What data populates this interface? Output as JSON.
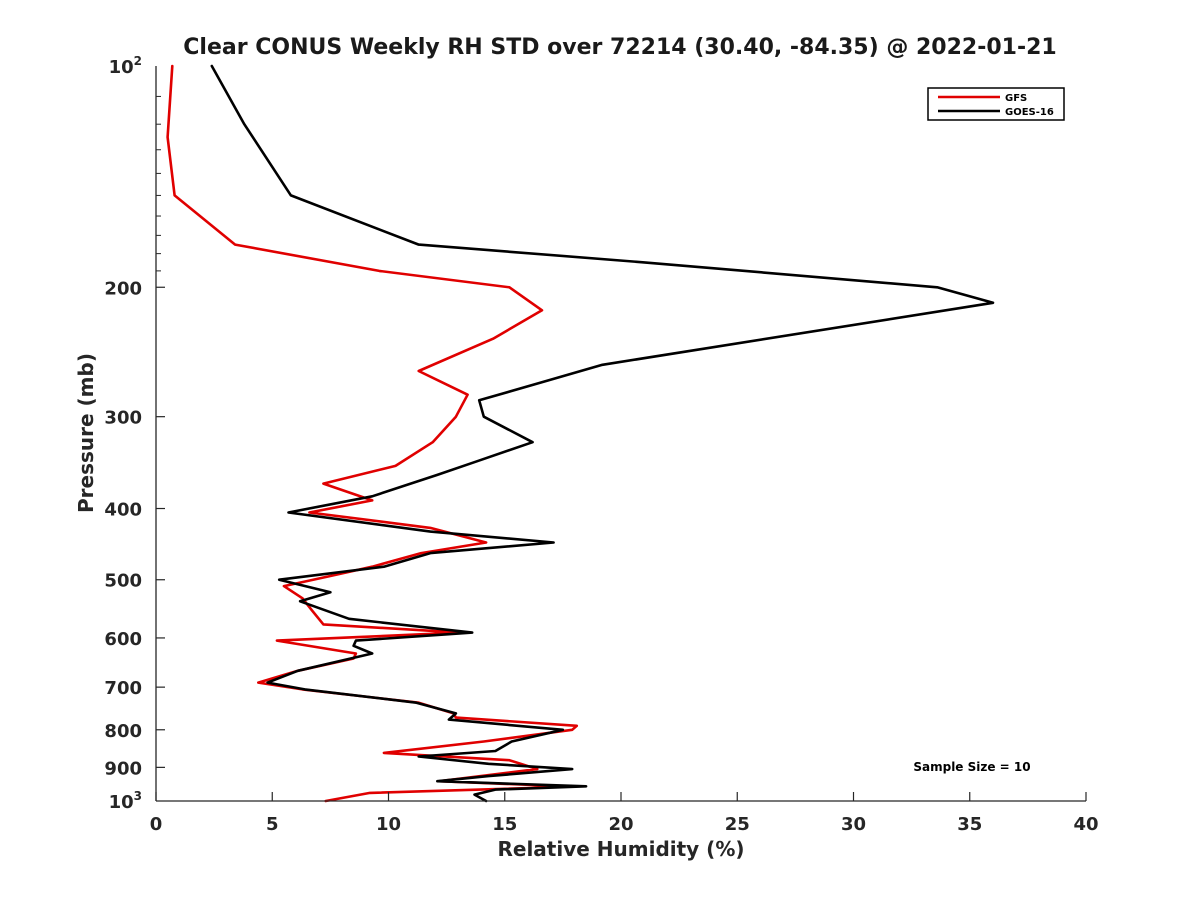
{
  "chart_data": {
    "type": "line",
    "title": "Clear CONUS Weekly RH STD over 72214 (30.40, -84.35) @ 2022-01-21",
    "xlabel": "Relative Humidity (%)",
    "ylabel": "Pressure (mb)",
    "xlim": [
      0,
      40
    ],
    "ylim": [
      100,
      1000
    ],
    "y_scale": "log",
    "y_reversed": true,
    "x_ticks": [
      0,
      5,
      10,
      15,
      20,
      25,
      30,
      35,
      40
    ],
    "x_tick_labels": [
      "0",
      "5",
      "10",
      "15",
      "20",
      "25",
      "30",
      "35",
      "40"
    ],
    "y_ticks": [
      200,
      300,
      400,
      500,
      600,
      700,
      800,
      900
    ],
    "y_tick_labels": [
      "200",
      "300",
      "400",
      "500",
      "600",
      "700",
      "800",
      "900"
    ],
    "y_top_label": {
      "base": "10",
      "exp": "2"
    },
    "y_bottom_label": {
      "base": "10",
      "exp": "3"
    },
    "legend_position": "top-right",
    "annotation": "Sample Size = 10",
    "series": [
      {
        "name": "GFS",
        "color": "#e00000",
        "points": [
          [
            0.7,
            100
          ],
          [
            0.5,
            125
          ],
          [
            0.8,
            150
          ],
          [
            3.4,
            175
          ],
          [
            9.6,
            190
          ],
          [
            15.2,
            200
          ],
          [
            16.6,
            215
          ],
          [
            14.5,
            235
          ],
          [
            11.3,
            260
          ],
          [
            13.4,
            280
          ],
          [
            12.9,
            300
          ],
          [
            11.9,
            325
          ],
          [
            10.3,
            350
          ],
          [
            7.2,
            370
          ],
          [
            9.3,
            390
          ],
          [
            6.6,
            405
          ],
          [
            11.8,
            425
          ],
          [
            14.2,
            445
          ],
          [
            11.4,
            460
          ],
          [
            9.3,
            480
          ],
          [
            7.4,
            495
          ],
          [
            5.5,
            510
          ],
          [
            6.3,
            530
          ],
          [
            6.7,
            550
          ],
          [
            7.2,
            575
          ],
          [
            13.1,
            590
          ],
          [
            5.2,
            605
          ],
          [
            8.6,
            630
          ],
          [
            8.5,
            640
          ],
          [
            6.1,
            665
          ],
          [
            4.4,
            690
          ],
          [
            6.3,
            705
          ],
          [
            11.3,
            735
          ],
          [
            12.8,
            760
          ],
          [
            12.9,
            770
          ],
          [
            18.1,
            790
          ],
          [
            17.9,
            800
          ],
          [
            14.1,
            830
          ],
          [
            9.8,
            860
          ],
          [
            15.2,
            880
          ],
          [
            16.4,
            905
          ],
          [
            12.2,
            940
          ],
          [
            17.6,
            955
          ],
          [
            16.1,
            960
          ],
          [
            9.2,
            975
          ],
          [
            7.3,
            1000
          ]
        ]
      },
      {
        "name": "GOES-16",
        "color": "#000000",
        "points": [
          [
            2.4,
            100
          ],
          [
            3.8,
            120
          ],
          [
            5.8,
            150
          ],
          [
            11.3,
            175
          ],
          [
            21.0,
            185
          ],
          [
            33.6,
            200
          ],
          [
            36.0,
            210
          ],
          [
            19.2,
            255
          ],
          [
            13.9,
            285
          ],
          [
            14.1,
            300
          ],
          [
            16.2,
            325
          ],
          [
            13.8,
            345
          ],
          [
            12.1,
            360
          ],
          [
            9.3,
            385
          ],
          [
            5.7,
            405
          ],
          [
            11.8,
            430
          ],
          [
            17.1,
            445
          ],
          [
            11.8,
            460
          ],
          [
            9.8,
            480
          ],
          [
            5.3,
            500
          ],
          [
            7.5,
            520
          ],
          [
            6.2,
            535
          ],
          [
            8.3,
            565
          ],
          [
            13.6,
            590
          ],
          [
            8.6,
            605
          ],
          [
            8.5,
            615
          ],
          [
            9.3,
            630
          ],
          [
            6.1,
            665
          ],
          [
            4.8,
            690
          ],
          [
            6.4,
            705
          ],
          [
            11.2,
            735
          ],
          [
            12.9,
            760
          ],
          [
            12.6,
            775
          ],
          [
            17.5,
            800
          ],
          [
            15.3,
            830
          ],
          [
            14.6,
            855
          ],
          [
            11.3,
            870
          ],
          [
            14.3,
            890
          ],
          [
            17.9,
            905
          ],
          [
            14.3,
            925
          ],
          [
            12.1,
            940
          ],
          [
            18.5,
            955
          ],
          [
            14.6,
            965
          ],
          [
            13.7,
            980
          ],
          [
            14.2,
            1000
          ]
        ]
      }
    ]
  }
}
